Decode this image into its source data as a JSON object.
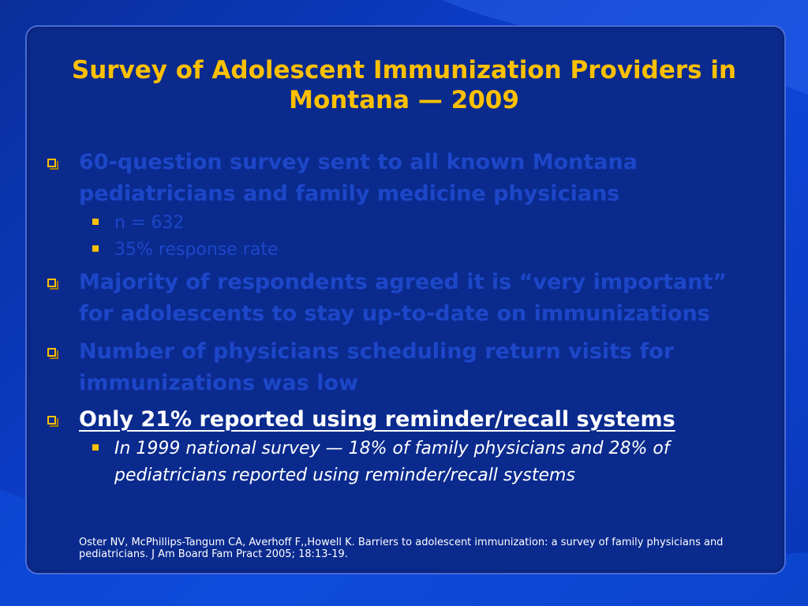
{
  "title": "Survey of Adolescent Immunization Providers in Montana — 2009",
  "bullets": [
    {
      "text": "60-question survey sent to all known Montana pediatricians and family medicine physicians",
      "sub": [
        "n = 632",
        "35% response rate"
      ]
    },
    {
      "text": "Majority of respondents agreed it is “very important” for adolescents to stay up-to-date on immunizations",
      "sub": []
    },
    {
      "text": "Number of physicians scheduling return visits for immunizations was low",
      "sub": []
    },
    {
      "text": "Only 21% reported using reminder/recall systems",
      "sub": [
        "In 1999 national survey  — 18% of family physicians and 28% of pediatricians reported using reminder/recall systems"
      ]
    }
  ],
  "reference": "Oster NV, McPhillips-Tangum CA, Averhoff F,,Howell K. Barriers to adolescent immunization: a survey of family physicians and pediatricians. J Am Board Fam Pract 2005; 18:13-19.",
  "colors": {
    "title": "#ffc000",
    "dimmed_text": "#1d47c8",
    "active_text": "#ffffff",
    "panel": "#0a2a8e"
  }
}
